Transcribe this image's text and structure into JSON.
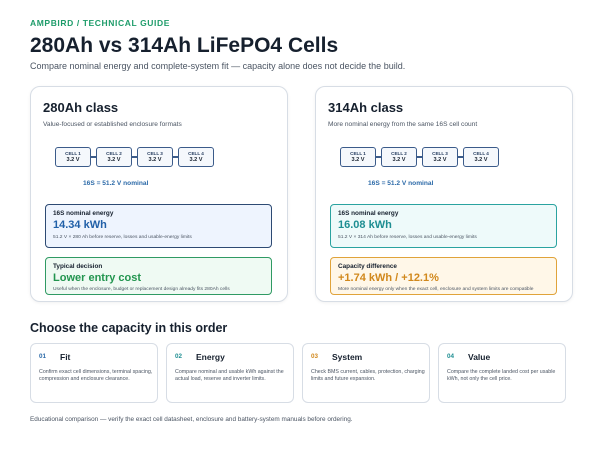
{
  "header": {
    "kicker": "AMPBIRD  /  TECHNICAL GUIDE",
    "title": "280Ah vs 314Ah LiFePO4 Cells",
    "subtitle": "Compare nominal energy and complete-system fit — capacity alone does not decide the build."
  },
  "panels": [
    {
      "title": "280Ah class",
      "subtitle": "Value-focused or established enclosure formats",
      "cells": [
        {
          "name": "CELL 1",
          "voltage": "3.2 V"
        },
        {
          "name": "CELL 2",
          "voltage": "3.2 V"
        },
        {
          "name": "CELL 3",
          "voltage": "3.2 V"
        },
        {
          "name": "CELL 4",
          "voltage": "3.2 V"
        }
      ],
      "nominal": "16S = 51.2 V nominal",
      "energy": {
        "label": "16S nominal energy",
        "value": "14.34 kWh",
        "detail": "51.2 V × 280 Ah before reserve, losses and usable-energy limits"
      },
      "note": {
        "label": "Typical decision",
        "value": "Lower entry cost",
        "detail": "Useful when the enclosure, budget or replacement design already fits 280Ah cells"
      }
    },
    {
      "title": "314Ah class",
      "subtitle": "More nominal energy from the same 16S cell count",
      "cells": [
        {
          "name": "CELL 1",
          "voltage": "3.2 V"
        },
        {
          "name": "CELL 2",
          "voltage": "3.2 V"
        },
        {
          "name": "CELL 3",
          "voltage": "3.2 V"
        },
        {
          "name": "CELL 4",
          "voltage": "3.2 V"
        }
      ],
      "nominal": "16S = 51.2 V nominal",
      "energy": {
        "label": "16S nominal energy",
        "value": "16.08 kWh",
        "detail": "51.2 V × 314 Ah before reserve, losses and usable-energy limits"
      },
      "note": {
        "label": "Capacity difference",
        "value": "+1.74 kWh / +12.1%",
        "detail": "More nominal energy only when the exact cell, enclosure and system limits are compatible"
      }
    }
  ],
  "section": {
    "title": "Choose the capacity in this order"
  },
  "steps": [
    {
      "num": "01",
      "title": "Fit",
      "desc": "Confirm exact cell dimensions, terminal spacing, compression and enclosure clearance.",
      "color": "#2c6aa8"
    },
    {
      "num": "02",
      "title": "Energy",
      "desc": "Compare nominal and usable kWh against the actual load, reserve and inverter limits.",
      "color": "#1e8e92"
    },
    {
      "num": "03",
      "title": "System",
      "desc": "Check BMS current, cables, protection, charging limits and future expansion.",
      "color": "#d1881c"
    },
    {
      "num": "04",
      "title": "Value",
      "desc": "Compare the complete landed cost per usable kWh, not only the cell price.",
      "color": "#1e8e92"
    }
  ],
  "footer": "Educational comparison — verify the exact cell datasheet, enclosure and battery-system manuals before ordering.",
  "colors": {
    "accent_green": "#1e9c6a",
    "blue": "#2160a8",
    "teal": "#1e8e92",
    "amber": "#d1881c"
  }
}
